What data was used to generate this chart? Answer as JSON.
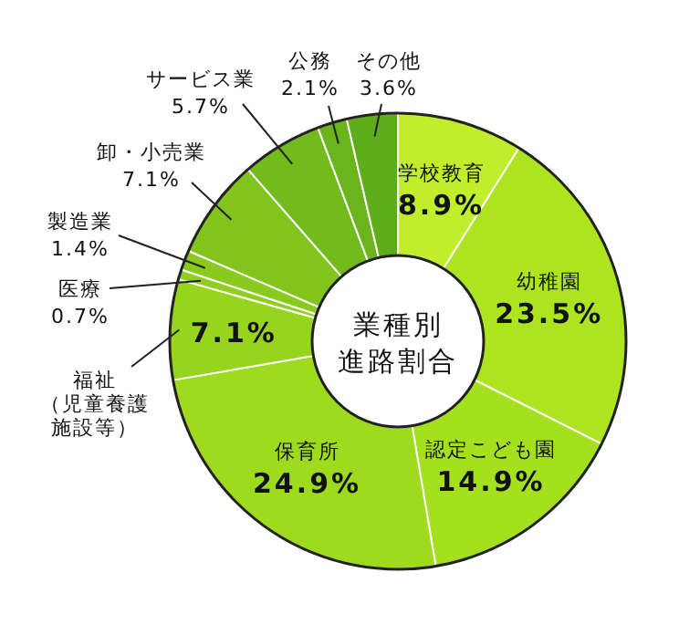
{
  "chart_data": {
    "type": "donut",
    "title": "業種別進路割合",
    "categories": [
      "学校教育",
      "幼稚園",
      "認定こども園",
      "保育所",
      "福祉（児童養護施設等）",
      "医療",
      "製造業",
      "卸・小売業",
      "サービス業",
      "公務",
      "その他"
    ],
    "values": [
      8.9,
      23.5,
      14.9,
      24.9,
      7.1,
      0.7,
      1.4,
      7.1,
      5.7,
      2.1,
      3.6
    ],
    "value_labels": [
      "8.9%",
      "23.5%",
      "14.9%",
      "24.9%",
      "7.1%",
      "0.7%",
      "1.4%",
      "7.1%",
      "5.7%",
      "2.1%",
      "3.6%"
    ],
    "colors": [
      "#c0ee2a",
      "#ace520",
      "#a5e01e",
      "#9edb1f",
      "#96d41e",
      "#8fce1e",
      "#8aca1e",
      "#80c41c",
      "#73ba1c",
      "#6ab41c",
      "#5fad1a"
    ]
  }
}
